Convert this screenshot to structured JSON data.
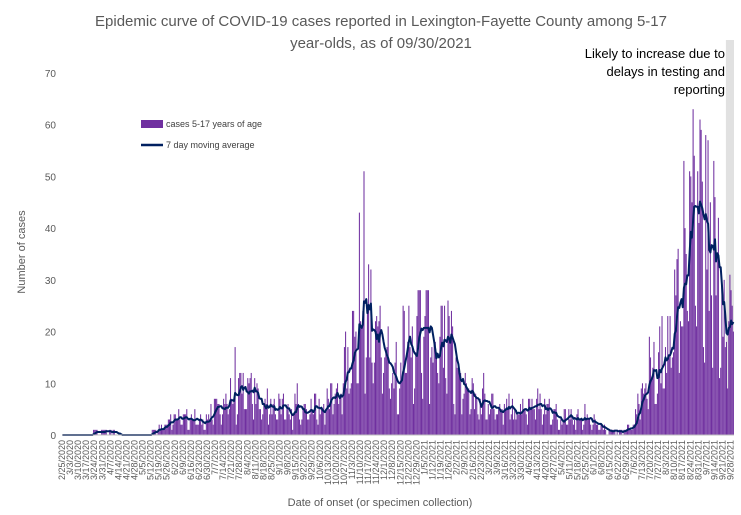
{
  "chart_data": {
    "type": "bar",
    "title_lines": [
      "Epidemic curve of COVID-19 cases reported in Lexington-Fayette County among 5-17",
      "year-olds, as of 09/30/2021"
    ],
    "xlabel": "Date of onset (or specimen collection)",
    "ylabel": "Number of cases",
    "ylim": [
      0,
      70
    ],
    "yticks": [
      0,
      10,
      20,
      30,
      40,
      50,
      60,
      70
    ],
    "xtick_labels": [
      "2/25/2020",
      "3/3/2020",
      "3/10/2020",
      "3/17/2020",
      "3/24/2020",
      "3/31/2020",
      "4/7/2020",
      "4/14/2020",
      "4/21/2020",
      "4/28/2020",
      "5/5/2020",
      "5/12/2020",
      "5/19/2020",
      "5/26/2020",
      "6/2/2020",
      "6/9/2020",
      "6/16/2020",
      "6/23/2020",
      "6/30/2020",
      "7/7/2020",
      "7/14/2020",
      "7/21/2020",
      "7/28/2020",
      "8/4/2020",
      "8/11/2020",
      "8/18/2020",
      "8/25/2020",
      "9/1/2020",
      "9/8/2020",
      "9/15/2020",
      "9/22/2020",
      "9/29/2020",
      "10/6/2020",
      "10/13/2020",
      "10/20/2020",
      "10/27/2020",
      "11/3/2020",
      "11/10/2020",
      "11/17/2020",
      "11/24/2020",
      "12/1/2020",
      "12/8/2020",
      "12/15/2020",
      "12/22/2020",
      "12/29/2020",
      "1/5/2021",
      "1/12/2021",
      "1/19/2021",
      "1/26/2021",
      "2/2/2021",
      "2/9/2021",
      "2/16/2021",
      "2/23/2021",
      "3/2/2021",
      "3/9/2021",
      "3/16/2021",
      "3/23/2021",
      "3/30/2021",
      "4/6/2021",
      "4/13/2021",
      "4/20/2021",
      "4/27/2021",
      "5/4/2021",
      "5/11/2021",
      "5/18/2021",
      "5/25/2021",
      "6/1/2021",
      "6/8/2021",
      "6/15/2021",
      "6/22/2021",
      "6/29/2021",
      "7/6/2021",
      "7/13/2021",
      "7/20/2021",
      "7/27/2021",
      "8/3/2021",
      "8/10/2021",
      "8/17/2021",
      "8/24/2021",
      "8/31/2021",
      "9/7/2021",
      "9/14/2021",
      "9/21/2021",
      "9/28/2021"
    ],
    "weekly_avg_daily_cases": [
      0.1,
      0.1,
      0.2,
      0.3,
      0.5,
      0.6,
      0.5,
      0.4,
      0.3,
      0.3,
      0.3,
      0.4,
      1.0,
      2.0,
      3.0,
      3.5,
      3.0,
      2.5,
      3.0,
      5.0,
      6.5,
      7.0,
      7.5,
      8.0,
      7.0,
      6.0,
      6.0,
      5.0,
      4.5,
      4.5,
      5.0,
      5.5,
      6.0,
      7.0,
      9.0,
      12.0,
      16.0,
      20.0,
      23.0,
      22.0,
      17.0,
      12.0,
      15.0,
      18.0,
      20.0,
      19.0,
      19.0,
      19.0,
      16.0,
      10.0,
      8.0,
      7.0,
      6.0,
      6.0,
      6.0,
      5.5,
      5.0,
      5.5,
      6.0,
      6.0,
      5.0,
      4.0,
      4.0,
      3.5,
      3.5,
      3.0,
      2.5,
      1.5,
      0.7,
      0.7,
      1.0,
      3.0,
      7.0,
      10.0,
      13.0,
      17.0,
      25.0,
      34.0,
      42.0,
      44.0,
      38.0,
      35.0,
      30.0,
      22.0
    ],
    "series": [
      {
        "name": "cases 5-17 years of age",
        "kind": "bar",
        "color": "#7030a0"
      },
      {
        "name": "7 day moving average",
        "kind": "line",
        "color": "#002060"
      }
    ],
    "legend_position": "upper-left",
    "shaded_region": {
      "from_date": "9/23/2021",
      "to_date": "9/30/2021",
      "color": "#d9d9d9"
    },
    "annotation_lines": [
      "Likely to increase due to",
      "delays in testing and",
      "reporting"
    ],
    "grid": false
  }
}
